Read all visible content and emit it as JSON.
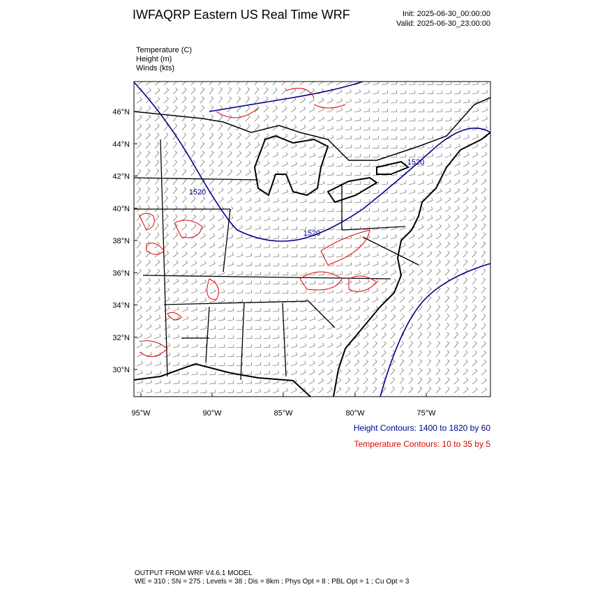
{
  "header": {
    "title": "IWFAQRP Eastern US Real Time WRF",
    "init": "Init: 2025-06-30_00:00:00",
    "valid": "Valid: 2025-06-30_23:00:00"
  },
  "fields": [
    "Temperature   (C)",
    "Height   (m)",
    "Winds   (kts)"
  ],
  "map": {
    "lon_labels": [
      "95°W",
      "90°W",
      "85°W",
      "80°W",
      "75°W"
    ],
    "lat_labels": [
      "46°N",
      "44°N",
      "42°N",
      "40°N",
      "38°N",
      "36°N",
      "34°N",
      "32°N",
      "30°N"
    ],
    "contour_labels": [
      "1520",
      "1520",
      "1520"
    ]
  },
  "legend": {
    "height": "Height Contours: 1400 to 1820 by 60",
    "temperature": "Temperature Contours: 10 to 35 by 5"
  },
  "footer": [
    "OUTPUT FROM WRF V4.6.1 MODEL",
    "WE = 310 ; SN = 275 ; Levels = 38 ; Dis = 8km ; Phys Opt = 8 ; PBL Opt = 1 ; Cu Opt = 3"
  ]
}
